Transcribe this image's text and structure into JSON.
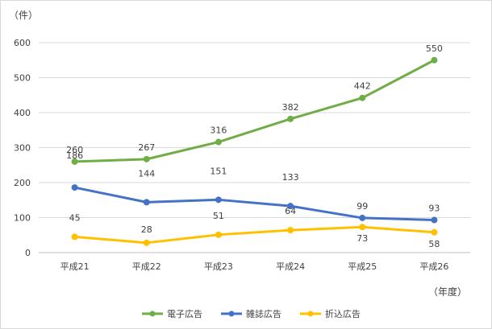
{
  "chart_data": {
    "type": "line",
    "y_unit_label": "（件）",
    "x_unit_label": "（年度）",
    "categories": [
      "平成21",
      "平成22",
      "平成23",
      "平成24",
      "平成25",
      "平成26"
    ],
    "ylim": [
      0,
      600
    ],
    "y_ticks": [
      0,
      100,
      200,
      300,
      400,
      500,
      600
    ],
    "grid": true,
    "legend_position": "bottom",
    "series": [
      {
        "name": "電子広告",
        "color": "#70ad47",
        "values": [
          260,
          267,
          316,
          382,
          442,
          550
        ],
        "labels": [
          "260",
          "267",
          "316",
          "382",
          "442",
          "550"
        ]
      },
      {
        "name": "雑誌広告",
        "color": "#4472c4",
        "values": [
          186,
          144,
          151,
          133,
          99,
          93
        ],
        "labels": [
          "186",
          "144",
          "151",
          "133",
          "99",
          "93"
        ]
      },
      {
        "name": "折込広告",
        "color": "#ffc000",
        "values": [
          45,
          28,
          51,
          64,
          73,
          58
        ],
        "labels": [
          "45",
          "28",
          "51",
          "64",
          "73",
          "58"
        ]
      }
    ]
  }
}
